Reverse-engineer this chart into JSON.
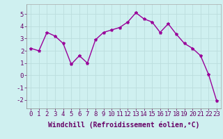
{
  "x": [
    0,
    1,
    2,
    3,
    4,
    5,
    6,
    7,
    8,
    9,
    10,
    11,
    12,
    13,
    14,
    15,
    16,
    17,
    18,
    19,
    20,
    21,
    22,
    23
  ],
  "y": [
    2.2,
    2.0,
    3.5,
    3.2,
    2.6,
    0.9,
    1.6,
    1.0,
    2.9,
    3.5,
    3.7,
    3.9,
    4.35,
    5.1,
    4.6,
    4.35,
    3.5,
    4.2,
    3.35,
    2.6,
    2.2,
    1.6,
    0.05,
    -2.1
  ],
  "line_color": "#990099",
  "marker": "*",
  "marker_size": 3,
  "xlabel": "Windchill (Refroidissement éolien,°C)",
  "xlabel_fontsize": 7,
  "xlim": [
    -0.5,
    23.5
  ],
  "ylim": [
    -2.7,
    5.8
  ],
  "yticks": [
    -2,
    -1,
    0,
    1,
    2,
    3,
    4,
    5
  ],
  "xticks": [
    0,
    1,
    2,
    3,
    4,
    5,
    6,
    7,
    8,
    9,
    10,
    11,
    12,
    13,
    14,
    15,
    16,
    17,
    18,
    19,
    20,
    21,
    22,
    23
  ],
  "bg_color": "#cff0f0",
  "grid_color": "#ddffff",
  "tick_label_fontsize": 6.5,
  "line_width": 1.0,
  "border_color": "#aaaaaa"
}
